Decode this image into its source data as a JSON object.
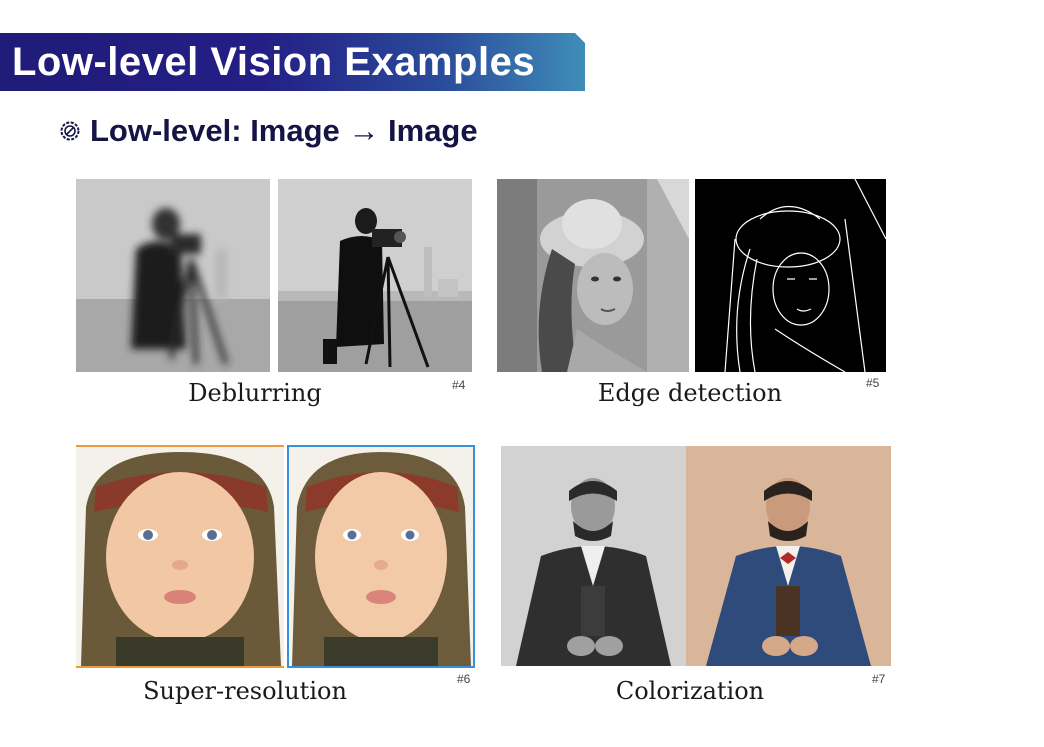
{
  "header": {
    "title": "Low-level Vision Examples"
  },
  "bullet": {
    "icon": "gear-badge-icon",
    "text": "Low-level: Image → Image"
  },
  "examples": [
    {
      "caption": "Deblurring",
      "ref": "#4"
    },
    {
      "caption": "Edge detection",
      "ref": "#5"
    },
    {
      "caption": "Super-resolution",
      "ref": "#6"
    },
    {
      "caption": "Colorization",
      "ref": "#7"
    }
  ],
  "colors": {
    "banner_start": "#1f1b78",
    "banner_end": "#3f8db8",
    "bullet_text": "#161445",
    "sr_border_left": "#e89a3c",
    "sr_border_right": "#3a8fd9"
  }
}
